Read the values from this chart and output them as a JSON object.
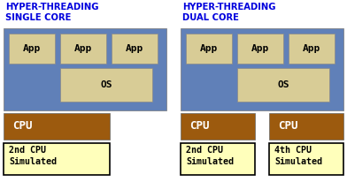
{
  "bg_color": "#ffffff",
  "title_color": "#0000dd",
  "title1": "HYPER-THREADING\nSINGLE CORE",
  "title2": "HYPER-THREADING\nDUAL CORE",
  "blue_color": "#6080b8",
  "tan_color": "#d8cc96",
  "cpu_color": "#9c5a0e",
  "cpu_text_color": "#ffffff",
  "sim_color": "#ffffbb",
  "app_text": "App",
  "os_text": "OS",
  "cpu_text": "CPU",
  "sim1_text": "2nd CPU\nSimulated",
  "sim2_text": "2nd CPU\nSimulated",
  "sim3_text": "4th CPU\nSimulated",
  "figsize": [
    3.92,
    2.06
  ],
  "dpi": 100
}
